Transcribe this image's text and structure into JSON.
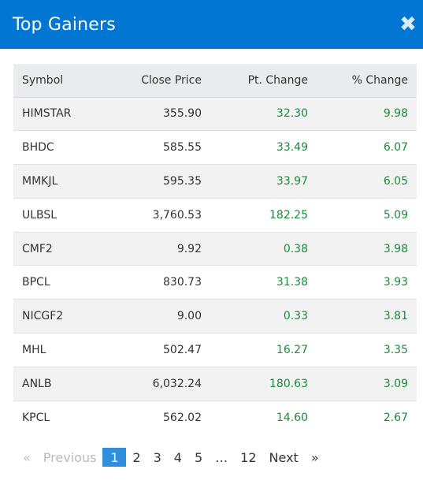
{
  "header": {
    "title": "Top Gainers",
    "close_glyph": "✖"
  },
  "table": {
    "columns": [
      "Symbol",
      "Close Price",
      "Pt. Change",
      "% Change"
    ],
    "rows": [
      {
        "symbol": "HIMSTAR",
        "close": "355.90",
        "pt": "32.30",
        "pct": "9.98"
      },
      {
        "symbol": "BHDC",
        "close": "585.55",
        "pt": "33.49",
        "pct": "6.07"
      },
      {
        "symbol": "MMKJL",
        "close": "595.35",
        "pt": "33.97",
        "pct": "6.05"
      },
      {
        "symbol": "ULBSL",
        "close": "3,760.53",
        "pt": "182.25",
        "pct": "5.09"
      },
      {
        "symbol": "CMF2",
        "close": "9.92",
        "pt": "0.38",
        "pct": "3.98"
      },
      {
        "symbol": "BPCL",
        "close": "830.73",
        "pt": "31.38",
        "pct": "3.93"
      },
      {
        "symbol": "NICGF2",
        "close": "9.00",
        "pt": "0.33",
        "pct": "3.81"
      },
      {
        "symbol": "MHL",
        "close": "502.47",
        "pt": "16.27",
        "pct": "3.35"
      },
      {
        "symbol": "ANLB",
        "close": "6,032.24",
        "pt": "180.63",
        "pct": "3.09"
      },
      {
        "symbol": "KPCL",
        "close": "562.02",
        "pt": "14.60",
        "pct": "2.67"
      }
    ]
  },
  "pagination": {
    "first_glyph": "«",
    "previous": "Previous",
    "pages": [
      "1",
      "2",
      "3",
      "4",
      "5"
    ],
    "ellipsis": "…",
    "last_page": "12",
    "next": "Next",
    "last_glyph": "»",
    "current": "1"
  },
  "colors": {
    "header_bg": "#0176d3",
    "gain_text": "#1b8a3a",
    "active_page_bg": "#2f8fdd"
  }
}
